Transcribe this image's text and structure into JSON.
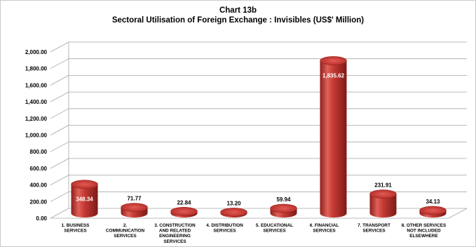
{
  "chart_data": {
    "type": "bar",
    "title": "Chart 13b",
    "subtitle": "Sectoral Utilisation of Foreign Exchange : Invisibles (US$' Million)",
    "categories": [
      [
        "1. BUSINESS",
        "SERVICES"
      ],
      [
        "2.",
        "COMMUNICATION",
        "SERVICES"
      ],
      [
        "3. CONSTRUCTION",
        "AND RELATED",
        "ENGINEERING",
        "SERVICES"
      ],
      [
        "4. DISTRIBUTION",
        "SERVICES"
      ],
      [
        "5. EDUCATIONAL",
        "SERVICES"
      ],
      [
        "6. FINANCIAL",
        "SERVICES"
      ],
      [
        "7. TRANSPORT",
        "SERVICES"
      ],
      [
        "8. OTHER SERVICES",
        "NOT INCLUDED",
        "ELSEWHERE"
      ]
    ],
    "values": [
      348.34,
      71.77,
      22.84,
      13.2,
      59.94,
      1835.62,
      231.91,
      34.13
    ],
    "value_labels": [
      "348.34",
      "71.77",
      "22.84",
      "13.20",
      "59.94",
      "1,835.62",
      "231.91",
      "34.13"
    ],
    "yticks": [
      "0.00",
      "200.00",
      "400.00",
      "600.00",
      "800.00",
      "1,000.00",
      "1,200.00",
      "1,400.00",
      "1,600.00",
      "1,800.00",
      "2,000.00"
    ],
    "ylim": [
      0,
      2000
    ],
    "xlabel": "",
    "ylabel": "",
    "grid": true,
    "legend": "none",
    "bar_style": "3d-cylinder",
    "bar_color": "#c0302b"
  }
}
